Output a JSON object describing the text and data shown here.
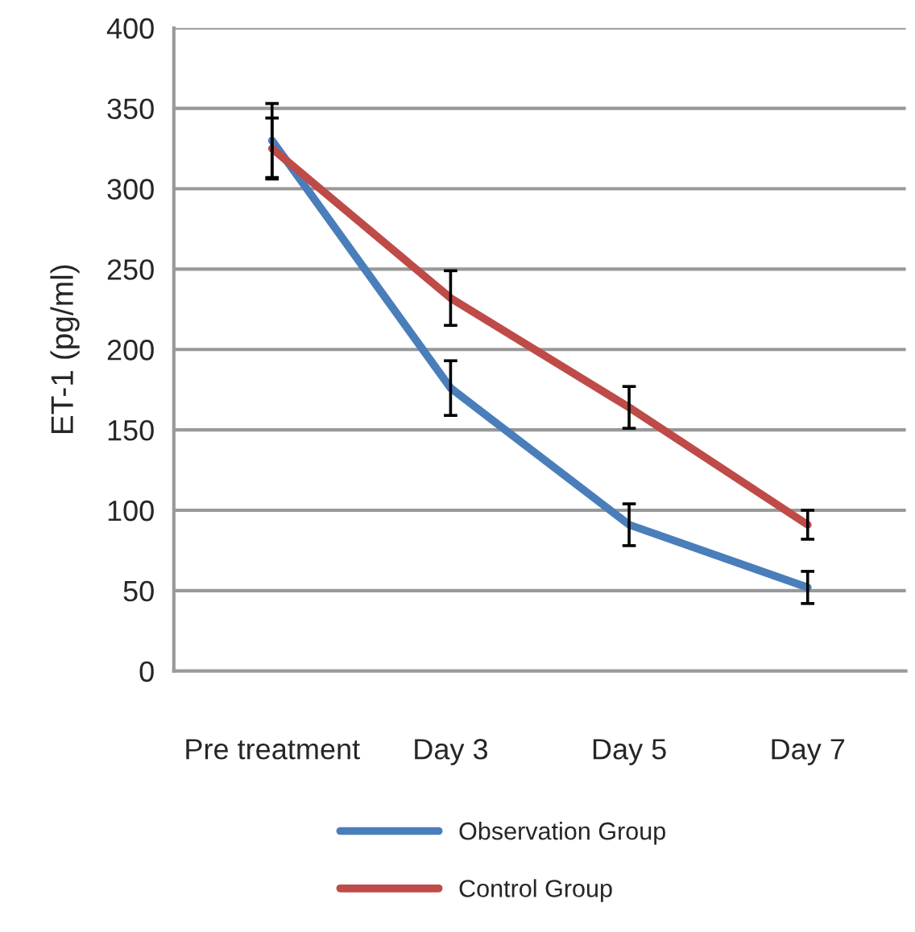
{
  "chart_data": {
    "type": "line",
    "ylabel": "ET-1 (pg/ml)",
    "categories": [
      "Pre treatment",
      "Day 3",
      "Day 5",
      "Day 7"
    ],
    "series": [
      {
        "name": "Observation Group",
        "color": "#4a7ebb",
        "values": [
          330,
          176,
          91,
          52
        ],
        "errors": [
          23,
          17,
          13,
          10
        ]
      },
      {
        "name": "Control Group",
        "color": "#be4b48",
        "values": [
          325,
          232,
          164,
          91
        ],
        "errors": [
          19,
          17,
          13,
          9
        ]
      }
    ],
    "ylim": [
      0,
      400
    ],
    "yticks": [
      0,
      50,
      100,
      150,
      200,
      250,
      300,
      350,
      400
    ],
    "grid": "y",
    "legend": "bottom",
    "marker": "none",
    "line_style": "solid"
  }
}
